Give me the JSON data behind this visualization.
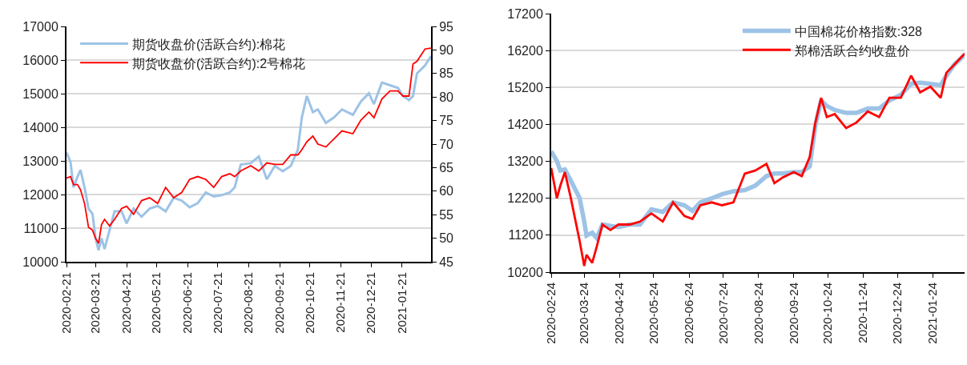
{
  "chart_data": [
    {
      "type": "line",
      "grid": "y",
      "legend": "top left",
      "x": [
        "2020-02-21",
        "2020-02-25",
        "2020-02-28",
        "2020-03-03",
        "2020-03-06",
        "2020-03-10",
        "2020-03-14",
        "2020-03-18",
        "2020-03-21",
        "2020-03-24",
        "2020-03-27",
        "2020-03-30",
        "2020-04-04",
        "2020-04-09",
        "2020-04-16",
        "2020-04-21",
        "2020-04-28",
        "2020-05-06",
        "2020-05-14",
        "2020-05-22",
        "2020-05-30",
        "2020-06-07",
        "2020-06-15",
        "2020-06-23",
        "2020-07-01",
        "2020-07-09",
        "2020-07-17",
        "2020-07-25",
        "2020-08-02",
        "2020-08-07",
        "2020-08-13",
        "2020-08-23",
        "2020-08-31",
        "2020-09-08",
        "2020-09-16",
        "2020-09-24",
        "2020-10-02",
        "2020-10-09",
        "2020-10-13",
        "2020-10-18",
        "2020-10-24",
        "2020-10-29",
        "2020-11-06",
        "2020-11-14",
        "2020-11-22",
        "2020-12-03",
        "2020-12-11",
        "2020-12-19",
        "2020-12-24",
        "2021-01-01",
        "2021-01-09",
        "2021-01-17",
        "2021-01-22",
        "2021-01-28",
        "2021-02-01",
        "2021-02-05",
        "2021-02-13",
        "2021-02-19"
      ],
      "xlim": [
        "2020-02-21",
        "2021-02-19"
      ],
      "xticks": [
        "2020-02-21",
        "2020-03-21",
        "2020-04-21",
        "2020-05-21",
        "2020-06-21",
        "2020-07-21",
        "2020-08-21",
        "2020-09-21",
        "2020-10-21",
        "2020-11-21",
        "2020-12-21",
        "2021-01-21"
      ],
      "ylim": [
        10000,
        17000
      ],
      "yticks": [
        10000,
        11000,
        12000,
        13000,
        14000,
        15000,
        16000,
        17000
      ],
      "y2lim": [
        45,
        95
      ],
      "y2ticks": [
        45,
        50,
        55,
        60,
        65,
        70,
        75,
        80,
        85,
        90,
        95
      ],
      "series": [
        {
          "name": "期货收盘价(活跃合约):棉花",
          "color": "#9dc3e6",
          "values": [
            13250,
            12970,
            12215,
            12530,
            12730,
            12215,
            11580,
            11420,
            10700,
            10340,
            10700,
            10380,
            10940,
            11500,
            11500,
            11140,
            11580,
            11340,
            11580,
            11660,
            11500,
            11900,
            11820,
            11620,
            11740,
            12060,
            11940,
            11980,
            12060,
            12215,
            12890,
            12930,
            13130,
            12450,
            12850,
            12690,
            12850,
            13330,
            14290,
            14930,
            14450,
            14530,
            14130,
            14290,
            14530,
            14370,
            14770,
            15010,
            14690,
            15330,
            15250,
            15170,
            14930,
            14810,
            14930,
            15600,
            15840,
            16120
          ]
        },
        {
          "name": "期货收盘价(活跃合约):2号棉花",
          "color": "#ff0000",
          "axis": "y2",
          "values": [
            62.8,
            63.1,
            61.4,
            61.4,
            60.3,
            57.4,
            52.3,
            51.7,
            50.0,
            48.9,
            52.9,
            54.0,
            52.6,
            54.0,
            56.3,
            56.8,
            55.1,
            58.0,
            58.6,
            57.4,
            60.8,
            58.6,
            59.7,
            62.5,
            63.1,
            62.5,
            60.8,
            63.1,
            63.7,
            63.1,
            64.3,
            65.4,
            64.3,
            66.0,
            65.7,
            65.7,
            67.7,
            67.7,
            68.8,
            70.5,
            71.7,
            70.0,
            69.4,
            71.1,
            72.8,
            72.2,
            75.1,
            76.8,
            75.6,
            79.6,
            81.3,
            81.3,
            80.2,
            80.2,
            87.0,
            87.6,
            90.2,
            90.4
          ]
        }
      ]
    },
    {
      "type": "line",
      "grid": "y",
      "legend": "top",
      "x": [
        "2020-02-24",
        "2020-02-29",
        "2020-03-03",
        "2020-03-07",
        "2020-03-12",
        "2020-03-17",
        "2020-03-20",
        "2020-03-24",
        "2020-03-26",
        "2020-03-31",
        "2020-04-04",
        "2020-04-09",
        "2020-04-16",
        "2020-04-23",
        "2020-05-03",
        "2020-05-12",
        "2020-05-22",
        "2020-06-01",
        "2020-06-10",
        "2020-06-20",
        "2020-06-27",
        "2020-07-04",
        "2020-07-14",
        "2020-07-23",
        "2020-08-02",
        "2020-08-12",
        "2020-08-21",
        "2020-08-31",
        "2020-09-07",
        "2020-09-14",
        "2020-09-24",
        "2020-10-01",
        "2020-10-08",
        "2020-10-13",
        "2020-10-18",
        "2020-10-23",
        "2020-10-30",
        "2020-11-09",
        "2020-11-18",
        "2020-11-28",
        "2020-12-08",
        "2020-12-17",
        "2020-12-27",
        "2021-01-05",
        "2021-01-13",
        "2021-01-22",
        "2021-01-31",
        "2021-02-05",
        "2021-02-12",
        "2021-02-21"
      ],
      "xlim": [
        "2020-02-24",
        "2021-02-21"
      ],
      "xticks": [
        "2020-02-24",
        "2020-03-24",
        "2020-04-24",
        "2020-05-24",
        "2020-06-24",
        "2020-07-24",
        "2020-08-24",
        "2020-09-24",
        "2020-10-24",
        "2020-11-24",
        "2020-12-24",
        "2021-01-24"
      ],
      "ylim": [
        10200,
        17200
      ],
      "yticks": [
        10200,
        11200,
        12200,
        13200,
        14200,
        15200,
        16200,
        17200
      ],
      "series": [
        {
          "name": "中国棉花价格指数:328",
          "color": "#9dc3e6",
          "values": [
            13470,
            13210,
            12950,
            12980,
            12690,
            12390,
            12200,
            11570,
            11190,
            11270,
            11120,
            11490,
            11450,
            11420,
            11490,
            11490,
            11900,
            11830,
            12090,
            12010,
            11860,
            12090,
            12200,
            12310,
            12390,
            12420,
            12540,
            12800,
            12870,
            12870,
            12910,
            12910,
            13060,
            14180,
            14850,
            14700,
            14590,
            14510,
            14510,
            14630,
            14630,
            14850,
            15000,
            15300,
            15330,
            15300,
            15260,
            15520,
            15820,
            16080
          ]
        },
        {
          "name": "郑棉活跃合约收盘价",
          "color": "#ff0000",
          "values": [
            13020,
            12200,
            12540,
            12910,
            12240,
            11490,
            11040,
            10370,
            10670,
            10450,
            10890,
            11490,
            11340,
            11490,
            11490,
            11570,
            11790,
            11570,
            12090,
            11720,
            11640,
            12010,
            12090,
            12010,
            12090,
            12870,
            12950,
            13130,
            12610,
            12760,
            12910,
            12800,
            13320,
            14250,
            14920,
            14400,
            14480,
            14100,
            14250,
            14550,
            14400,
            14920,
            14920,
            15520,
            15070,
            15220,
            14920,
            15600,
            15820,
            16120
          ]
        }
      ]
    }
  ]
}
